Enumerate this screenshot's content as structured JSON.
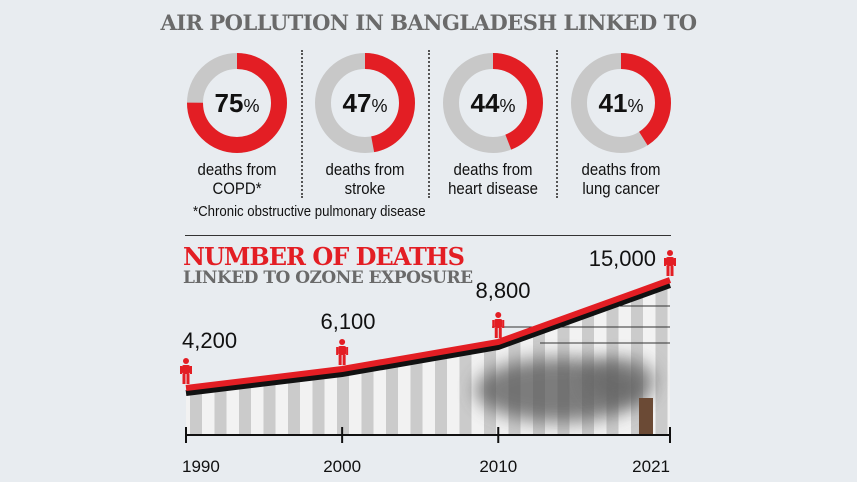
{
  "title": "AIR POLLUTION IN BANGLADESH LINKED TO",
  "chart_data": [
    {
      "type": "pie",
      "style": "donut",
      "items": [
        {
          "value": 75,
          "label_line1": "deaths from",
          "label_line2": "COPD*"
        },
        {
          "value": 47,
          "label_line1": "deaths from",
          "label_line2": "stroke"
        },
        {
          "value": 44,
          "label_line1": "deaths from",
          "label_line2": "heart disease"
        },
        {
          "value": 41,
          "label_line1": "deaths from",
          "label_line2": "lung cancer"
        }
      ],
      "unit": "%",
      "colors": {
        "share": "#e31e24",
        "rest": "#c8c8c8"
      },
      "footnote": "*Chronic obstructive pulmonary disease"
    },
    {
      "type": "line",
      "title": "NUMBER OF DEATHS",
      "subtitle": "LINKED TO OZONE EXPOSURE",
      "x": [
        1990,
        2000,
        2010,
        2021
      ],
      "values": [
        4200,
        6100,
        8800,
        15000
      ],
      "data_labels": [
        "4,200",
        "6,100",
        "8,800",
        "15,000"
      ],
      "tick_labels": [
        "1990",
        "2000",
        "2010",
        "2021"
      ],
      "colors": {
        "line": "#e31e24",
        "shadow": "#111111",
        "marker": "#e31e24"
      }
    }
  ]
}
